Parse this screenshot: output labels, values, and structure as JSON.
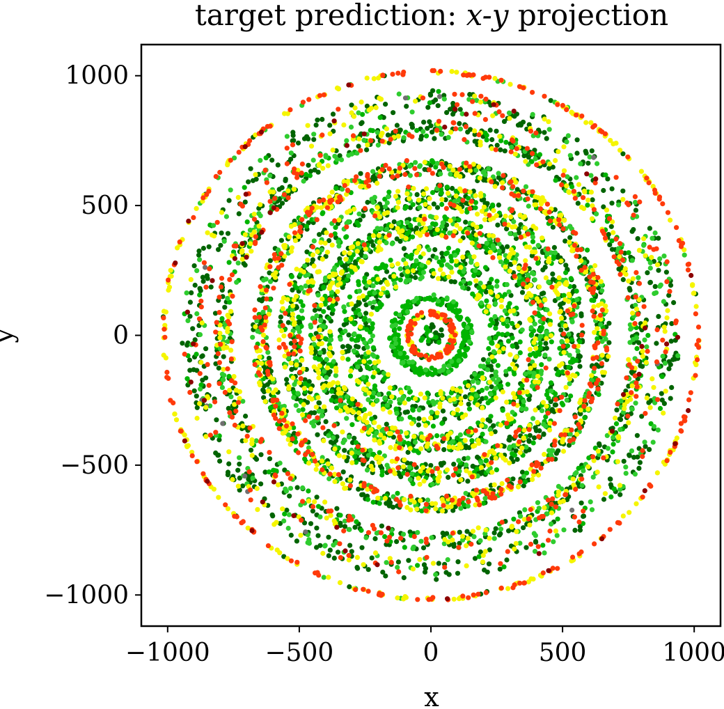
{
  "chart_data": {
    "type": "scatter",
    "title": {
      "prefix": "target prediction: ",
      "math": "x-y",
      "suffix": " projection"
    },
    "xlabel": "x",
    "ylabel": "y",
    "xlim": [
      -1100,
      1100
    ],
    "ylim": [
      -1120,
      1120
    ],
    "xticks": [
      -1000,
      -500,
      0,
      500,
      1000
    ],
    "yticks": [
      -1000,
      -500,
      0,
      500,
      1000
    ],
    "xtick_labels": [
      "−1000",
      "−500",
      "0",
      "500",
      "1000"
    ],
    "ytick_labels": [
      "1000",
      "500",
      "0",
      "−500",
      "−1000"
    ],
    "grid": false,
    "point_classes": [
      {
        "class": "dark-green",
        "color": "#006400"
      },
      {
        "class": "green",
        "color": "#00b400"
      },
      {
        "class": "light-green",
        "color": "#2ecc2e"
      },
      {
        "class": "yellow",
        "color": "#f5f500"
      },
      {
        "class": "red-orange",
        "color": "#ff3a0a"
      },
      {
        "class": "dark-red",
        "color": "#8b0000"
      },
      {
        "class": "gray",
        "color": "#707070"
      }
    ],
    "rings": [
      {
        "radius": 25,
        "width": 40,
        "density": 0.5,
        "weights": [
          70,
          30,
          0,
          0,
          0,
          0,
          0
        ]
      },
      {
        "radius": 85,
        "width": 20,
        "density": 0.9,
        "weights": [
          5,
          10,
          5,
          30,
          50,
          0,
          0
        ]
      },
      {
        "radius": 140,
        "width": 35,
        "density": 1.2,
        "weights": [
          10,
          75,
          15,
          0,
          0,
          0,
          0
        ]
      },
      {
        "radius": 285,
        "width": 130,
        "density": 1.8,
        "weights": [
          30,
          40,
          15,
          15,
          0,
          0,
          0
        ]
      },
      {
        "radius": 420,
        "width": 80,
        "density": 1.7,
        "weights": [
          35,
          25,
          15,
          20,
          5,
          0,
          0
        ]
      },
      {
        "radius": 535,
        "width": 90,
        "density": 1.4,
        "weights": [
          35,
          20,
          15,
          22,
          8,
          0,
          0
        ]
      },
      {
        "radius": 650,
        "width": 60,
        "density": 1.2,
        "weights": [
          30,
          10,
          15,
          25,
          20,
          0,
          0
        ]
      },
      {
        "radius": 790,
        "width": 70,
        "density": 0.9,
        "weights": [
          40,
          10,
          15,
          18,
          15,
          2,
          0
        ]
      },
      {
        "radius": 900,
        "width": 90,
        "density": 0.55,
        "weights": [
          45,
          5,
          18,
          15,
          12,
          3,
          2
        ]
      },
      {
        "radius": 1015,
        "width": 12,
        "density": 0.25,
        "weights": [
          5,
          0,
          5,
          40,
          45,
          5,
          0
        ]
      }
    ]
  }
}
